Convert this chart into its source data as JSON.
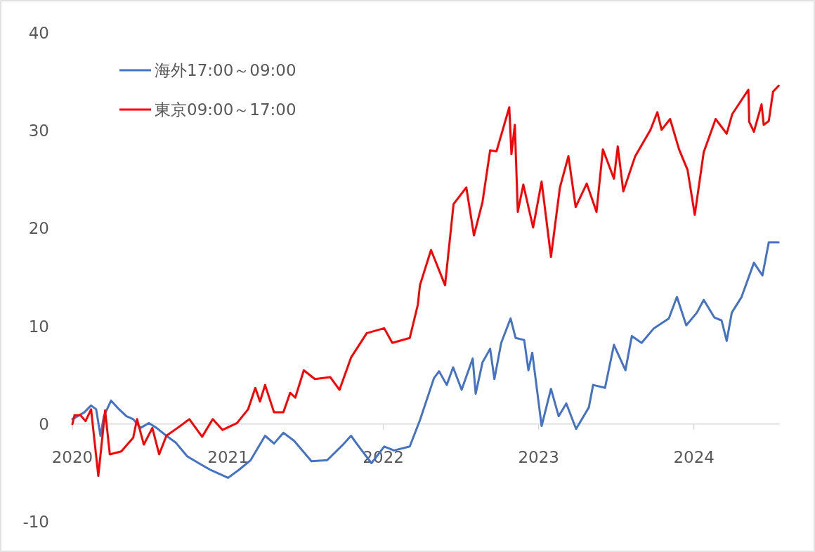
{
  "chart_data": {
    "type": "line",
    "legend": "top left",
    "grid": false,
    "marker": "none",
    "line_style": "solid",
    "xlim": [
      "2020-01-01",
      "2024-07-21"
    ],
    "xticks": [
      "2020",
      "2021",
      "2022",
      "2023",
      "2024"
    ],
    "ylim": [
      -10,
      40
    ],
    "yticks": [
      -10,
      0,
      10,
      20,
      30,
      40
    ],
    "series": [
      {
        "name": "海外17:00～09:00",
        "color": "#4472c4",
        "x": [
          "2020-01-01",
          "2020-01-29",
          "2020-02-14",
          "2020-02-26",
          "2020-03-07",
          "2020-03-15",
          "2020-04-01",
          "2020-04-20",
          "2020-05-07",
          "2020-05-23",
          "2020-06-09",
          "2020-06-29",
          "2020-07-17",
          "2020-08-09",
          "2020-08-31",
          "2020-09-27",
          "2020-10-24",
          "2020-11-21",
          "2021-01-01",
          "2021-01-26",
          "2021-02-23",
          "2021-03-29",
          "2021-04-19",
          "2021-05-11",
          "2021-06-05",
          "2021-07-16",
          "2021-08-22",
          "2021-09-26",
          "2021-10-17",
          "2021-11-06",
          "2021-12-04",
          "2022-01-03",
          "2022-01-26",
          "2022-03-04",
          "2022-03-28",
          "2022-04-30",
          "2022-05-12",
          "2022-05-30",
          "2022-06-14",
          "2022-07-04",
          "2022-07-30",
          "2022-08-06",
          "2022-08-22",
          "2022-09-09",
          "2022-09-19",
          "2022-10-05",
          "2022-10-27",
          "2022-11-08",
          "2022-11-28",
          "2022-12-08",
          "2022-12-17",
          "2023-01-08",
          "2023-01-30",
          "2023-02-17",
          "2023-03-07",
          "2023-03-30",
          "2023-04-29",
          "2023-05-09",
          "2023-06-06",
          "2023-06-27",
          "2023-07-24",
          "2023-08-08",
          "2023-08-31",
          "2023-09-29",
          "2023-11-03",
          "2023-11-22",
          "2023-12-14",
          "2024-01-08",
          "2024-01-24",
          "2024-02-18",
          "2024-03-06",
          "2024-03-18",
          "2024-03-30",
          "2024-04-22",
          "2024-05-21",
          "2024-06-10",
          "2024-06-25",
          "2024-07-18"
        ],
        "values": [
          0.5,
          1.2,
          1.9,
          1.5,
          -1.2,
          0.8,
          2.4,
          1.5,
          0.8,
          0.5,
          -0.4,
          0.1,
          -0.4,
          -1.2,
          -1.9,
          -3.3,
          -4.0,
          -4.7,
          -5.5,
          -4.7,
          -3.7,
          -1.2,
          -2.0,
          -0.9,
          -1.7,
          -3.8,
          -3.7,
          -2.2,
          -1.2,
          -2.4,
          -4.0,
          -2.3,
          -2.7,
          -2.3,
          0.4,
          4.7,
          5.4,
          4.0,
          5.8,
          3.5,
          6.7,
          3.1,
          6.3,
          7.7,
          4.6,
          8.3,
          10.8,
          8.8,
          8.6,
          5.5,
          7.3,
          -0.2,
          3.6,
          0.8,
          2.1,
          -0.5,
          1.7,
          4.0,
          3.7,
          8.1,
          5.5,
          9.0,
          8.3,
          9.8,
          10.8,
          13.0,
          10.1,
          11.4,
          12.7,
          10.9,
          10.6,
          8.5,
          11.4,
          13.0,
          16.5,
          15.2,
          18.6,
          18.6
        ]
      },
      {
        "name": "東京09:00～17:00",
        "color": "#ff0000",
        "x": [
          "2020-01-01",
          "2020-01-06",
          "2020-01-20",
          "2020-02-01",
          "2020-02-14",
          "2020-03-02",
          "2020-03-18",
          "2020-03-29",
          "2020-04-25",
          "2020-05-23",
          "2020-06-01",
          "2020-06-17",
          "2020-07-07",
          "2020-07-23",
          "2020-08-09",
          "2020-09-04",
          "2020-10-02",
          "2020-11-01",
          "2020-11-26",
          "2020-12-19",
          "2021-01-22",
          "2021-02-17",
          "2021-03-06",
          "2021-03-17",
          "2021-03-29",
          "2021-04-19",
          "2021-05-11",
          "2021-05-27",
          "2021-06-08",
          "2021-06-28",
          "2021-07-24",
          "2021-08-29",
          "2021-09-20",
          "2021-10-17",
          "2021-11-23",
          "2022-01-03",
          "2022-01-22",
          "2022-03-04",
          "2022-03-23",
          "2022-03-28",
          "2022-04-23",
          "2022-05-26",
          "2022-06-15",
          "2022-07-15",
          "2022-08-02",
          "2022-08-22",
          "2022-09-09",
          "2022-09-24",
          "2022-10-24",
          "2022-10-29",
          "2022-11-06",
          "2022-11-13",
          "2022-11-26",
          "2022-12-19",
          "2023-01-08",
          "2023-01-30",
          "2023-02-20",
          "2023-03-12",
          "2023-03-29",
          "2023-04-24",
          "2023-05-17",
          "2023-06-01",
          "2023-06-27",
          "2023-07-06",
          "2023-07-19",
          "2023-08-16",
          "2023-09-21",
          "2023-10-07",
          "2023-10-17",
          "2023-11-06",
          "2023-11-27",
          "2023-12-17",
          "2024-01-03",
          "2024-01-24",
          "2024-02-21",
          "2024-03-18",
          "2024-03-31",
          "2024-05-08",
          "2024-05-10",
          "2024-05-21",
          "2024-06-08",
          "2024-06-13",
          "2024-06-25",
          "2024-07-05",
          "2024-07-18"
        ],
        "values": [
          0,
          0.9,
          0.9,
          0.3,
          1.5,
          -5.3,
          1.4,
          -3.1,
          -2.8,
          -1.4,
          0.5,
          -2.1,
          -0.4,
          -3.1,
          -1.2,
          -0.4,
          0.5,
          -1.3,
          0.5,
          -0.6,
          0.1,
          1.5,
          3.7,
          2.3,
          4.0,
          1.2,
          1.2,
          3.2,
          2.7,
          5.5,
          4.6,
          4.8,
          3.5,
          6.8,
          9.3,
          9.8,
          8.3,
          8.8,
          12.2,
          14.2,
          17.8,
          14.2,
          22.5,
          24.2,
          19.3,
          22.7,
          28.0,
          27.9,
          32.4,
          27.6,
          30.6,
          21.7,
          24.5,
          20.1,
          24.8,
          17.1,
          24.2,
          27.4,
          22.2,
          24.6,
          21.7,
          28.1,
          25.1,
          28.4,
          23.8,
          27.4,
          30.1,
          31.9,
          30.1,
          31.2,
          28.1,
          26.0,
          21.4,
          27.8,
          31.2,
          29.7,
          31.7,
          34.2,
          30.9,
          29.9,
          32.7,
          30.6,
          31.0,
          34.0,
          34.6
        ]
      }
    ]
  }
}
